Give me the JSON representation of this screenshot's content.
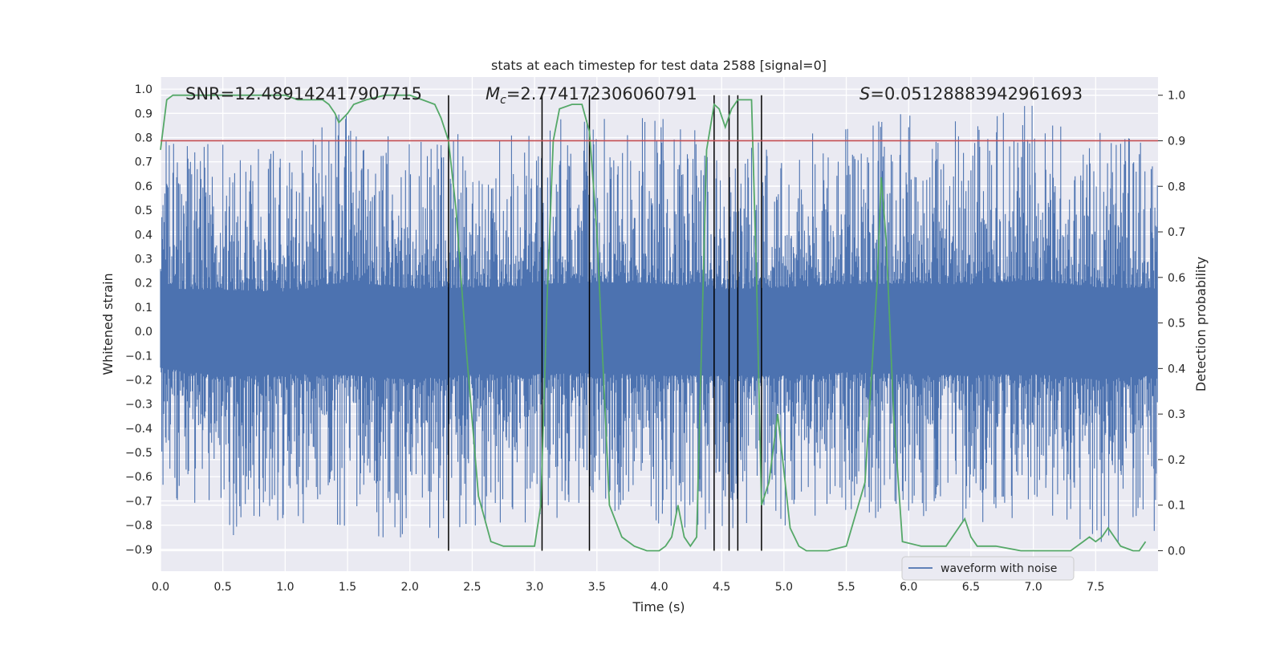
{
  "chart_data": {
    "type": "line",
    "title": "stats at each timestep for test data 2588 [signal=0]",
    "xlabel": "Time (s)",
    "ylabel": "Whitened strain",
    "y2label": "Detection probability",
    "xlim": [
      0.0,
      8.0
    ],
    "ylim": [
      -0.99,
      1.05
    ],
    "y2lim": [
      -0.045,
      1.04
    ],
    "x_ticks": [
      0.0,
      0.5,
      1.0,
      1.5,
      2.0,
      2.5,
      3.0,
      3.5,
      4.0,
      4.5,
      5.0,
      5.5,
      6.0,
      6.5,
      7.0,
      7.5
    ],
    "x_tick_labels": [
      "0.0",
      "0.5",
      "1.0",
      "1.5",
      "2.0",
      "2.5",
      "3.0",
      "3.5",
      "4.0",
      "4.5",
      "5.0",
      "5.5",
      "6.0",
      "6.5",
      "7.0",
      "7.5"
    ],
    "y_ticks": [
      -0.9,
      -0.8,
      -0.7,
      -0.6,
      -0.5,
      -0.4,
      -0.3,
      -0.2,
      -0.1,
      0.0,
      0.1,
      0.2,
      0.3,
      0.4,
      0.5,
      0.6,
      0.7,
      0.8,
      0.9,
      1.0
    ],
    "y_tick_labels": [
      "−0.9",
      "−0.8",
      "−0.7",
      "−0.6",
      "−0.5",
      "−0.4",
      "−0.3",
      "−0.2",
      "−0.1",
      "0.0",
      "0.1",
      "0.2",
      "0.3",
      "0.4",
      "0.5",
      "0.6",
      "0.7",
      "0.8",
      "0.9",
      "1.0"
    ],
    "y2_ticks": [
      0.0,
      0.1,
      0.2,
      0.3,
      0.4,
      0.5,
      0.6,
      0.7,
      0.8,
      0.9,
      1.0
    ],
    "y2_tick_labels": [
      "0.0",
      "0.1",
      "0.2",
      "0.3",
      "0.4",
      "0.5",
      "0.6",
      "0.7",
      "0.8",
      "0.9",
      "1.0"
    ],
    "grid": true,
    "legend": {
      "position": "bottom-right",
      "entries": [
        "waveform with noise"
      ]
    },
    "annotations": {
      "snr": "SNR=12.489142417907715",
      "mc_symbol": "M",
      "mc_sub": "c",
      "mc_value": "=2.774172306060791",
      "s_symbol": "S",
      "s_value": "=0.05128883942961693"
    },
    "threshold": {
      "value": 0.9,
      "axis": "y2",
      "color": "#c44e52"
    },
    "vertical_lines": [
      2.31,
      3.06,
      3.44,
      4.44,
      4.56,
      4.63,
      4.82
    ],
    "series": [
      {
        "name": "waveform with noise",
        "axis": "y",
        "color": "#4c72b0",
        "envelope": {
          "x": [
            0.0,
            0.5,
            1.0,
            1.5,
            2.0,
            2.5,
            3.0,
            3.5,
            4.0,
            4.5,
            5.0,
            5.5,
            6.0,
            6.5,
            7.0,
            7.5,
            8.0
          ],
          "upper": [
            0.8,
            0.78,
            0.74,
            0.93,
            0.8,
            0.82,
            0.86,
            0.92,
            0.9,
            0.79,
            0.82,
            0.88,
            0.9,
            0.88,
            0.96,
            0.83,
            0.8
          ],
          "lower": [
            -0.68,
            -0.85,
            -0.8,
            -0.82,
            -0.9,
            -0.81,
            -0.8,
            -0.78,
            -0.82,
            -0.83,
            -0.83,
            -0.77,
            -0.8,
            -0.82,
            -0.8,
            -0.9,
            -0.82
          ]
        }
      },
      {
        "axis": "y2",
        "color": "#55a868",
        "x": [
          0.0,
          0.05,
          0.1,
          0.2,
          0.4,
          0.6,
          0.8,
          1.0,
          1.1,
          1.2,
          1.3,
          1.35,
          1.4,
          1.43,
          1.5,
          1.55,
          1.65,
          1.8,
          1.9,
          2.0,
          2.1,
          2.2,
          2.25,
          2.31,
          2.37,
          2.45,
          2.55,
          2.65,
          2.75,
          2.85,
          2.95,
          3.0,
          3.05,
          3.1,
          3.15,
          3.2,
          3.3,
          3.38,
          3.44,
          3.5,
          3.6,
          3.7,
          3.8,
          3.9,
          4.0,
          4.05,
          4.1,
          4.15,
          4.2,
          4.25,
          4.3,
          4.38,
          4.44,
          4.48,
          4.53,
          4.58,
          4.63,
          4.68,
          4.74,
          4.78,
          4.82,
          4.88,
          4.95,
          5.05,
          5.12,
          5.18,
          5.25,
          5.35,
          5.5,
          5.65,
          5.75,
          5.78,
          5.82,
          5.88,
          5.95,
          6.1,
          6.2,
          6.3,
          6.4,
          6.45,
          6.5,
          6.55,
          6.7,
          6.9,
          7.1,
          7.3,
          7.4,
          7.45,
          7.5,
          7.55,
          7.6,
          7.7,
          7.8,
          7.85,
          7.9
        ],
        "values": [
          0.88,
          0.99,
          1.0,
          1.0,
          1.0,
          1.0,
          1.0,
          1.0,
          0.99,
          0.99,
          0.99,
          0.98,
          0.96,
          0.94,
          0.96,
          0.98,
          0.99,
          1.0,
          1.0,
          1.0,
          0.99,
          0.98,
          0.95,
          0.9,
          0.75,
          0.45,
          0.12,
          0.02,
          0.01,
          0.01,
          0.01,
          0.01,
          0.1,
          0.55,
          0.9,
          0.97,
          0.98,
          0.98,
          0.92,
          0.7,
          0.1,
          0.03,
          0.01,
          0.0,
          0.0,
          0.01,
          0.03,
          0.1,
          0.03,
          0.01,
          0.03,
          0.88,
          0.98,
          0.97,
          0.93,
          0.97,
          0.99,
          0.99,
          0.99,
          0.6,
          0.1,
          0.15,
          0.3,
          0.05,
          0.01,
          0.0,
          0.0,
          0.0,
          0.01,
          0.15,
          0.6,
          0.82,
          0.68,
          0.3,
          0.02,
          0.01,
          0.01,
          0.01,
          0.05,
          0.07,
          0.03,
          0.01,
          0.01,
          0.0,
          0.0,
          0.0,
          0.02,
          0.03,
          0.02,
          0.03,
          0.05,
          0.01,
          0.0,
          0.0,
          0.02
        ]
      }
    ]
  }
}
